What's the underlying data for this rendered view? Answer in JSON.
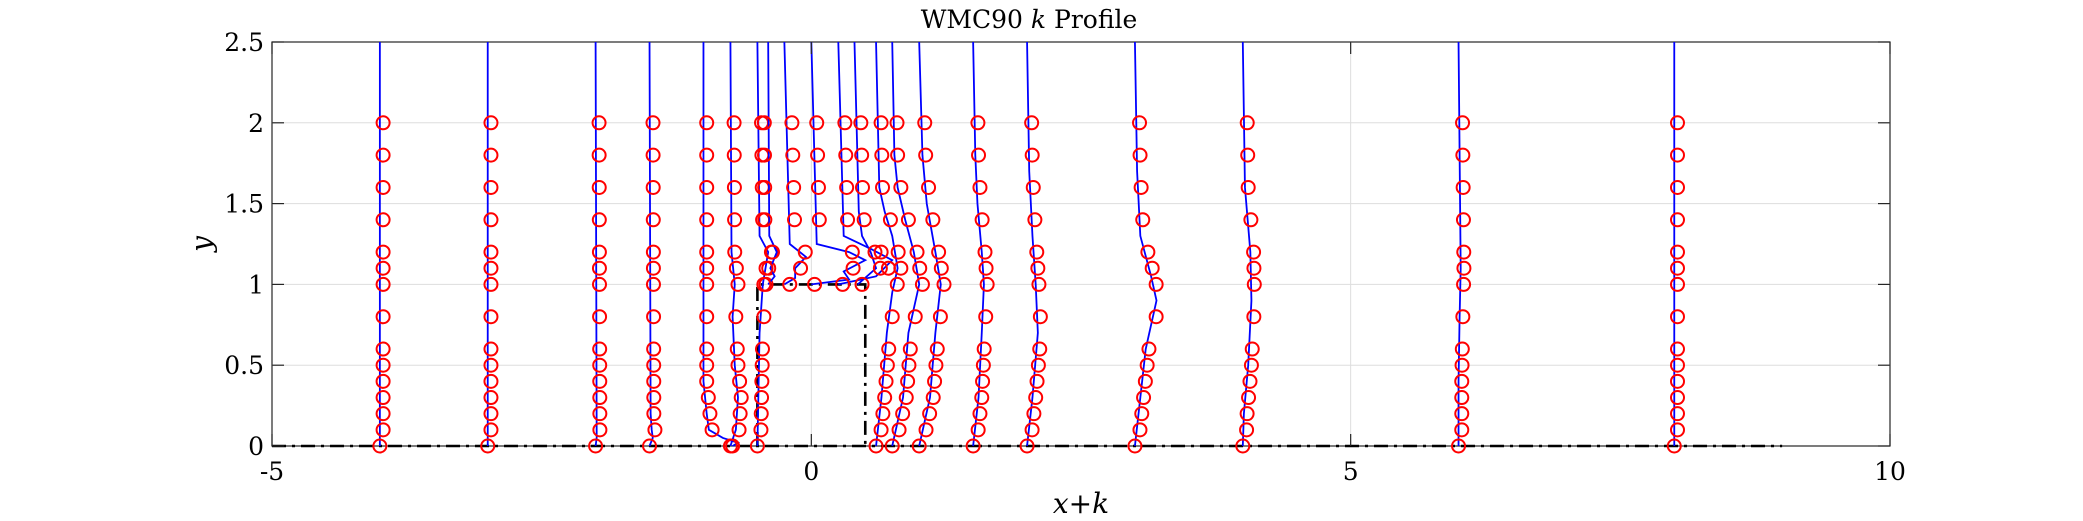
{
  "chart_data": {
    "type": "line",
    "title": "WMC90 k Profile",
    "title_parts": {
      "pre": "WMC90 ",
      "italic": "k",
      "post": " Profile"
    },
    "xlabel": "x+k",
    "ylabel": "y",
    "xlim": [
      -5,
      10
    ],
    "ylim": [
      0,
      2.5
    ],
    "xticks": [
      -5,
      0,
      5,
      10
    ],
    "yticks": [
      0,
      0.5,
      1,
      1.5,
      2,
      2.5
    ],
    "xtick_labels": [
      "-5",
      "0",
      "5",
      "10"
    ],
    "ytick_labels": [
      "0",
      "0.5",
      "1",
      "1.5",
      "2",
      "2.5"
    ],
    "grid": true,
    "colors": {
      "model_line": "#0000ff",
      "measurement_marker": "#ff0000",
      "geometry": "#000000",
      "grid": "#dddddd"
    },
    "geometry": {
      "floor": {
        "x": [
          -5,
          9
        ],
        "y": 0
      },
      "block": {
        "x": [
          -0.5,
          0.5
        ],
        "y": [
          0,
          1
        ]
      }
    },
    "measurement_y": [
      0,
      0.1,
      0.2,
      0.3,
      0.4,
      0.5,
      0.6,
      0.8,
      1.0,
      1.1,
      1.2,
      1.4,
      1.6,
      1.8,
      2.0
    ],
    "series": [
      {
        "x0": -4.0,
        "marker_offset": 0.03,
        "profile": [
          [
            0,
            0
          ],
          [
            2.5,
            0
          ]
        ]
      },
      {
        "x0": -3.0,
        "marker_offset": 0.03,
        "profile": [
          [
            0,
            0
          ],
          [
            2.5,
            0
          ]
        ]
      },
      {
        "x0": -2.0,
        "marker_offset": 0.03,
        "profile": [
          [
            0,
            0
          ],
          [
            0.05,
            0.01
          ],
          [
            2.5,
            0
          ]
        ]
      },
      {
        "x0": -1.5,
        "marker_offset": 0.03,
        "profile": [
          [
            0,
            0
          ],
          [
            0.05,
            0.03
          ],
          [
            0.1,
            0.02
          ],
          [
            0.2,
            0.01
          ],
          [
            2.5,
            0
          ]
        ]
      },
      {
        "x0": -1.0,
        "marker_offset": 0.03,
        "profile": [
          [
            0,
            0.27
          ],
          [
            0.02,
            0.32
          ],
          [
            0.05,
            0.18
          ],
          [
            0.1,
            0.05
          ],
          [
            0.2,
            0.03
          ],
          [
            0.4,
            0.0
          ],
          [
            2.5,
            0
          ]
        ]
      },
      {
        "x0": -0.75,
        "marker_offset": 0.03,
        "profile": [
          [
            0,
            0
          ],
          [
            0.1,
            0.05
          ],
          [
            0.3,
            0.07
          ],
          [
            0.5,
            0.04
          ],
          [
            0.8,
            0.02
          ],
          [
            1.0,
            0.04
          ],
          [
            1.2,
            0.01
          ],
          [
            2.5,
            0
          ]
        ]
      },
      {
        "x0": -0.5,
        "marker_offset": 0.03,
        "profile": [
          [
            0,
            0
          ],
          [
            0.7,
            0.02
          ],
          [
            1.0,
            0.05
          ],
          [
            1.2,
            0.1
          ],
          [
            1.3,
            0.02
          ],
          [
            2.5,
            0
          ]
        ]
      },
      {
        "x0": -0.4,
        "marker_offset": -0.04,
        "profile": [
          [
            1.0,
            0.0
          ],
          [
            1.05,
            0.06
          ],
          [
            1.1,
            0.02
          ],
          [
            1.2,
            0.08
          ],
          [
            1.3,
            0.01
          ],
          [
            2.5,
            0
          ]
        ]
      },
      {
        "x0": -0.25,
        "marker_offset": 0.05,
        "profile": [
          [
            1.0,
            0.0
          ],
          [
            1.04,
            0.1
          ],
          [
            1.1,
            0.1
          ],
          [
            1.17,
            0.2
          ],
          [
            1.25,
            0.05
          ],
          [
            2.5,
            0
          ]
        ]
      },
      {
        "x0": 0.0,
        "marker_offset": 0.03,
        "profile": [
          [
            1.0,
            0.0
          ],
          [
            1.03,
            0.35
          ],
          [
            1.08,
            0.3
          ],
          [
            1.15,
            0.5
          ],
          [
            1.2,
            0.35
          ],
          [
            1.25,
            0.05
          ],
          [
            2.5,
            0
          ]
        ]
      },
      {
        "x0": 0.25,
        "marker_offset": 0.04,
        "profile": [
          [
            1.0,
            0.0
          ],
          [
            1.05,
            0.35
          ],
          [
            1.15,
            0.5
          ],
          [
            1.22,
            0.3
          ],
          [
            1.3,
            0.05
          ],
          [
            2.5,
            0
          ]
        ]
      },
      {
        "x0": 0.4,
        "marker_offset": 0.04,
        "profile": [
          [
            1.0,
            0.03
          ],
          [
            1.1,
            0.2
          ],
          [
            1.2,
            0.15
          ],
          [
            1.3,
            0.07
          ],
          [
            1.45,
            0.04
          ],
          [
            2.5,
            0
          ]
        ]
      },
      {
        "x0": 0.6,
        "marker_offset": 0.03,
        "profile": [
          [
            0,
            0
          ],
          [
            0.3,
            0.05
          ],
          [
            0.7,
            0.1
          ],
          [
            0.95,
            0.15
          ],
          [
            1.1,
            0.2
          ],
          [
            1.3,
            0.15
          ],
          [
            1.45,
            0.08
          ],
          [
            1.6,
            0.03
          ],
          [
            2.5,
            0
          ]
        ]
      },
      {
        "x0": 0.75,
        "marker_offset": 0.03,
        "profile": [
          [
            0,
            0
          ],
          [
            0.3,
            0.1
          ],
          [
            0.7,
            0.15
          ],
          [
            1.0,
            0.25
          ],
          [
            1.2,
            0.2
          ],
          [
            1.4,
            0.12
          ],
          [
            1.6,
            0.05
          ],
          [
            1.8,
            0.02
          ],
          [
            2.5,
            0
          ]
        ]
      },
      {
        "x0": 1.0,
        "marker_offset": 0.03,
        "profile": [
          [
            0,
            0
          ],
          [
            0.3,
            0.1
          ],
          [
            0.7,
            0.15
          ],
          [
            1.0,
            0.2
          ],
          [
            1.2,
            0.15
          ],
          [
            1.5,
            0.07
          ],
          [
            1.8,
            0.03
          ],
          [
            2.5,
            0
          ]
        ]
      },
      {
        "x0": 1.5,
        "marker_offset": 0.03,
        "profile": [
          [
            0,
            0
          ],
          [
            0.3,
            0.05
          ],
          [
            0.7,
            0.08
          ],
          [
            1.0,
            0.1
          ],
          [
            1.2,
            0.08
          ],
          [
            1.5,
            0.04
          ],
          [
            1.8,
            0.02
          ],
          [
            2.5,
            0
          ]
        ]
      },
      {
        "x0": 2.0,
        "marker_offset": 0.03,
        "profile": [
          [
            0,
            0
          ],
          [
            0.3,
            0.05
          ],
          [
            0.7,
            0.1
          ],
          [
            1.0,
            0.08
          ],
          [
            1.3,
            0.05
          ],
          [
            1.7,
            0.02
          ],
          [
            2.5,
            0
          ]
        ]
      },
      {
        "x0": 3.0,
        "marker_offset": 0.03,
        "profile": [
          [
            0,
            0
          ],
          [
            0.3,
            0.05
          ],
          [
            0.6,
            0.1
          ],
          [
            0.9,
            0.2
          ],
          [
            1.05,
            0.15
          ],
          [
            1.3,
            0.05
          ],
          [
            1.7,
            0.02
          ],
          [
            2.5,
            0
          ]
        ]
      },
      {
        "x0": 4.0,
        "marker_offset": 0.03,
        "profile": [
          [
            0,
            0
          ],
          [
            0.2,
            0.01
          ],
          [
            0.5,
            0.05
          ],
          [
            0.9,
            0.08
          ],
          [
            1.2,
            0.07
          ],
          [
            1.6,
            0.02
          ],
          [
            2.5,
            0
          ]
        ]
      },
      {
        "x0": 6.0,
        "marker_offset": 0.03,
        "profile": [
          [
            0,
            0
          ],
          [
            0.4,
            0.0
          ],
          [
            0.8,
            0.01
          ],
          [
            1.1,
            0.02
          ],
          [
            2.5,
            0
          ]
        ]
      },
      {
        "x0": 8.0,
        "marker_offset": 0.03,
        "profile": [
          [
            0,
            0
          ],
          [
            2.5,
            0
          ]
        ]
      }
    ]
  }
}
